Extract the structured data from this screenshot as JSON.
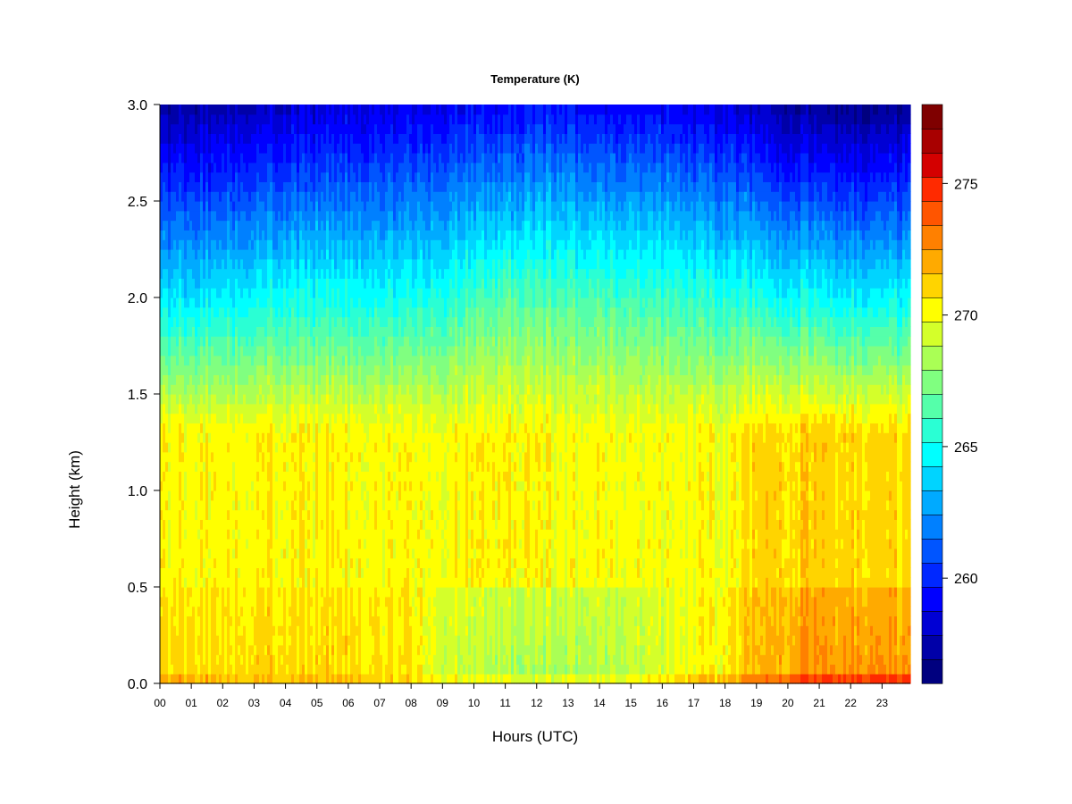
{
  "chart_data": {
    "type": "heatmap",
    "title": "Temperature (K)",
    "xlabel": "Hours (UTC)",
    "ylabel": "Height (km)",
    "x_ticks": [
      "00",
      "01",
      "02",
      "03",
      "04",
      "05",
      "06",
      "07",
      "08",
      "09",
      "10",
      "11",
      "12",
      "13",
      "14",
      "15",
      "16",
      "17",
      "18",
      "19",
      "20",
      "21",
      "22",
      "23"
    ],
    "x_range": [
      0,
      23.9
    ],
    "y_ticks": [
      "0.0",
      "0.5",
      "1.0",
      "1.5",
      "2.0",
      "2.5",
      "3.0"
    ],
    "y_range": [
      0,
      3.0
    ],
    "colorbar": {
      "range": [
        256,
        278
      ],
      "ticks": [
        "260",
        "265",
        "270",
        "275"
      ],
      "tick_values": [
        260,
        265,
        270,
        275
      ],
      "levels": 22,
      "colors": [
        "#00007F",
        "#0000A8",
        "#0000D4",
        "#0000FF",
        "#0028FF",
        "#0055FF",
        "#0080FF",
        "#00AAFF",
        "#00D4FF",
        "#00FFFF",
        "#2AFFD4",
        "#55FFAA",
        "#80FF80",
        "#AAFF55",
        "#D4FF2A",
        "#FFFF00",
        "#FFD400",
        "#FFAA00",
        "#FF8000",
        "#FF5500",
        "#FF2A00",
        "#D40000",
        "#A80000",
        "#7F0000"
      ]
    },
    "profile": {
      "note": "",
      "times_h": [
        0,
        2,
        4,
        6,
        8,
        9,
        10,
        11,
        12,
        13,
        14,
        15,
        16,
        17,
        18,
        18.7,
        19.5,
        20.5,
        21.5,
        22.5,
        23.9
      ],
      "surface_K": [
        273,
        272.5,
        272,
        272,
        271.5,
        271,
        270.5,
        270.5,
        270.5,
        270.5,
        271,
        271,
        271.5,
        272.5,
        273,
        274,
        275,
        276,
        276.5,
        276.5,
        276
      ],
      "lowlayer_K": [
        270.8,
        271,
        271,
        271,
        270.5,
        269.5,
        268.8,
        268.3,
        268.3,
        268.5,
        268.5,
        268.8,
        269.2,
        270,
        270.5,
        271.5,
        272,
        272.5,
        272.5,
        272.5,
        272.3
      ],
      "mid_K": [
        270,
        270,
        270,
        270,
        270,
        270.5,
        271,
        271.2,
        271.2,
        270.8,
        271,
        270.5,
        270.3,
        270,
        270,
        270.5,
        271,
        270.5,
        270.5,
        270.3,
        270
      ],
      "upper2km_K": [
        264,
        264.5,
        265,
        265,
        265,
        265.5,
        266,
        266.5,
        266.5,
        266.5,
        266.3,
        266,
        266,
        265.5,
        265.5,
        265.5,
        265,
        265,
        264.5,
        264.5,
        264.5
      ],
      "top3km_K": [
        257,
        257.5,
        258,
        258.5,
        258.5,
        259,
        259,
        259,
        259.5,
        259.5,
        259,
        259,
        259,
        258.5,
        258.5,
        258,
        257.5,
        257,
        257,
        256.5,
        257
      ]
    }
  }
}
